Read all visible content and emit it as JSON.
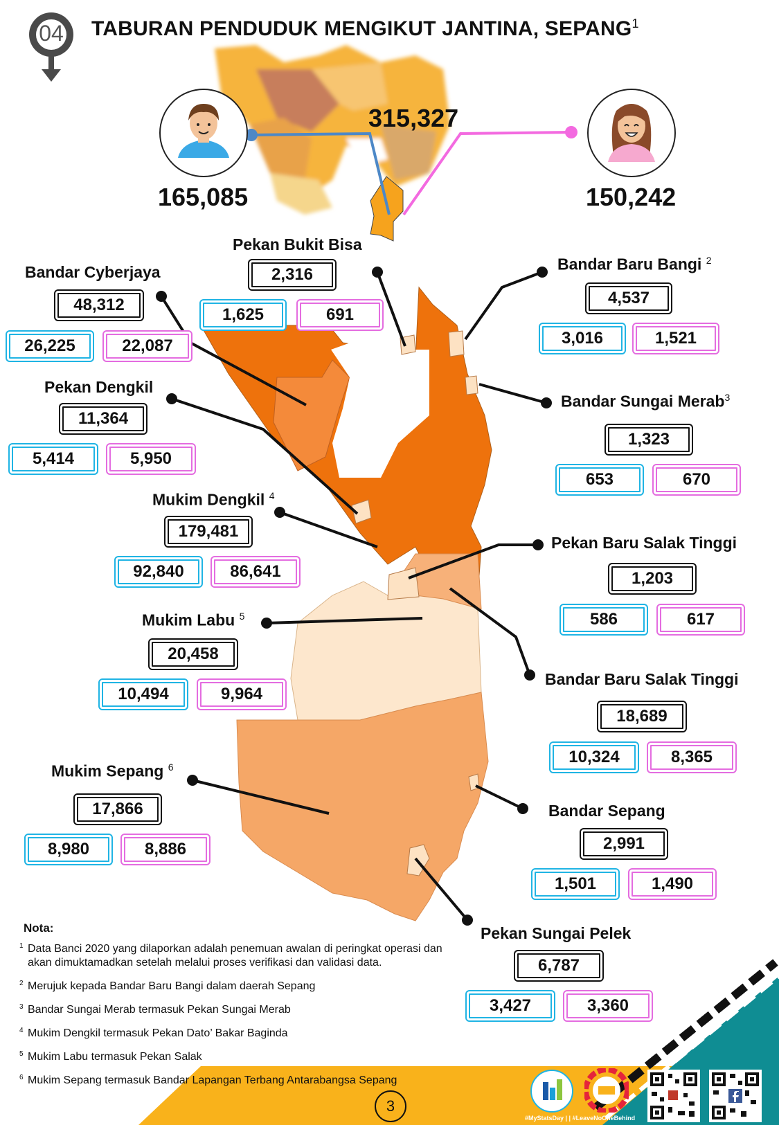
{
  "header": {
    "badge_number": "04",
    "title": "TABURAN PENDUDUK MENGIKUT JANTINA, SEPANG",
    "title_note": "1"
  },
  "summary": {
    "total": "315,327",
    "male": "165,085",
    "female": "150,242"
  },
  "colors": {
    "male": "#1fb4e4",
    "female": "#e46ce0",
    "footer": "#f9b21b",
    "teal": "#0f8d93"
  },
  "regions": {
    "pekan_bukit_bisa": {
      "name": "Pekan Bukit Bisa",
      "note": "",
      "total": "2,316",
      "male": "1,625",
      "female": "691"
    },
    "bandar_cyberjaya": {
      "name": "Bandar Cyberjaya",
      "note": "",
      "total": "48,312",
      "male": "26,225",
      "female": "22,087"
    },
    "bandar_baru_bangi": {
      "name": "Bandar Baru Bangi",
      "note": "2",
      "total": "4,537",
      "male": "3,016",
      "female": "1,521"
    },
    "pekan_dengkil": {
      "name": "Pekan Dengkil",
      "note": "",
      "total": "11,364",
      "male": "5,414",
      "female": "5,950"
    },
    "bandar_sungai_merab": {
      "name": "Bandar Sungai Merab",
      "note": "3",
      "total": "1,323",
      "male": "653",
      "female": "670"
    },
    "mukim_dengkil": {
      "name": "Mukim Dengkil",
      "note": "4",
      "total": "179,481",
      "male": "92,840",
      "female": "86,641"
    },
    "pekan_baru_salak_tinggi": {
      "name": "Pekan Baru Salak Tinggi",
      "note": "",
      "total": "1,203",
      "male": "586",
      "female": "617"
    },
    "mukim_labu": {
      "name": "Mukim Labu",
      "note": "5",
      "total": "20,458",
      "male": "10,494",
      "female": "9,964"
    },
    "bandar_baru_salak_tinggi": {
      "name": "Bandar Baru Salak Tinggi",
      "note": "",
      "total": "18,689",
      "male": "10,324",
      "female": "8,365"
    },
    "mukim_sepang": {
      "name": "Mukim Sepang",
      "note": "6",
      "total": "17,866",
      "male": "8,980",
      "female": "8,886"
    },
    "bandar_sepang": {
      "name": "Bandar Sepang",
      "note": "",
      "total": "2,991",
      "male": "1,501",
      "female": "1,490"
    },
    "pekan_sungai_pelek": {
      "name": "Pekan Sungai Pelek",
      "note": "",
      "total": "6,787",
      "male": "3,427",
      "female": "3,360"
    }
  },
  "notes": {
    "heading": "Nota:",
    "items": [
      {
        "num": "1",
        "text": "Data Banci 2020 yang dilaporkan adalah penemuan awalan di peringkat operasi dan akan dimuktamadkan setelah melalui proses verifikasi dan validasi data."
      },
      {
        "num": "2",
        "text": "Merujuk kepada Bandar Baru Bangi dalam daerah Sepang"
      },
      {
        "num": "3",
        "text": "Bandar Sungai Merab termasuk Pekan Sungai Merab"
      },
      {
        "num": "4",
        "text": "Mukim Dengkil termasuk Pekan Dato’ Bakar Baginda"
      },
      {
        "num": "5",
        "text": "Mukim Labu termasuk Pekan Salak"
      },
      {
        "num": "6",
        "text": "Mukim Sepang termasuk Bandar Lapangan Terbang Antarabangsa Sepang"
      }
    ]
  },
  "footer": {
    "page_number": "3",
    "hashtags": "#MyStatsDay | | #LeaveNoOneBehind"
  }
}
